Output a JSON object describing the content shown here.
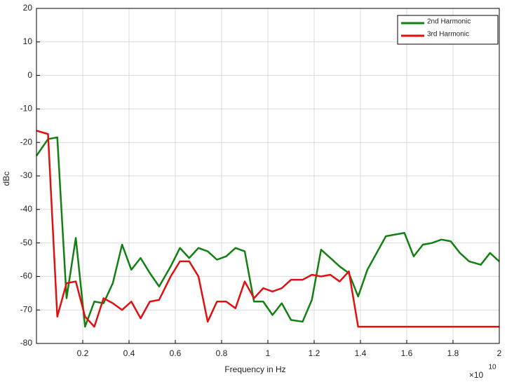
{
  "chart_data": {
    "type": "line",
    "x_label": "Frequency in Hz",
    "y_label": "dBc",
    "x_multiplier": "×10",
    "x_multiplier_exponent": "10",
    "xlim": [
      0,
      2
    ],
    "ylim": [
      -80,
      20
    ],
    "xticks": [
      0.2,
      0.4,
      0.6,
      0.8,
      1,
      1.2,
      1.4,
      1.6,
      1.8,
      2
    ],
    "yticks": [
      -80,
      -70,
      -60,
      -50,
      -40,
      -30,
      -20,
      -10,
      0,
      10,
      20
    ],
    "grid": true,
    "legend": "upper right",
    "series": [
      {
        "name": "2nd Harmonic",
        "color": "#128012",
        "x": [
          0,
          0.05,
          0.09,
          0.13,
          0.17,
          0.21,
          0.25,
          0.29,
          0.33,
          0.37,
          0.41,
          0.45,
          0.49,
          0.53,
          0.58,
          0.62,
          0.66,
          0.7,
          0.74,
          0.78,
          0.82,
          0.86,
          0.9,
          0.94,
          0.98,
          1.02,
          1.06,
          1.1,
          1.15,
          1.19,
          1.23,
          1.27,
          1.31,
          1.35,
          1.39,
          1.43,
          1.51,
          1.55,
          1.59,
          1.63,
          1.67,
          1.71,
          1.75,
          1.79,
          1.83,
          1.87,
          1.92,
          1.96,
          2
        ],
        "values": [
          -24,
          -19,
          -18.5,
          -66.5,
          -48.5,
          -75,
          -67.5,
          -68,
          -62,
          -50.5,
          -58,
          -54.5,
          -59,
          -63,
          -57,
          -51.5,
          -54.5,
          -51.5,
          -52.5,
          -55,
          -54,
          -51.5,
          -52.5,
          -67.5,
          -67.5,
          -71.5,
          -68,
          -73,
          -73.5,
          -67,
          -52,
          -54.5,
          -57,
          -59,
          -66,
          -58,
          -48,
          -47.5,
          -47,
          -54,
          -50.5,
          -50,
          -49,
          -49.5,
          -53,
          -55.5,
          -56.5,
          -53,
          -55.5
        ]
      },
      {
        "name": "3rd Harmonic",
        "color": "#e01010",
        "x": [
          0,
          0.05,
          0.09,
          0.13,
          0.17,
          0.21,
          0.25,
          0.29,
          0.33,
          0.37,
          0.41,
          0.45,
          0.49,
          0.53,
          0.58,
          0.62,
          0.66,
          0.7,
          0.74,
          0.78,
          0.82,
          0.86,
          0.9,
          0.94,
          0.98,
          1.02,
          1.06,
          1.1,
          1.15,
          1.19,
          1.23,
          1.27,
          1.31,
          1.35,
          1.39,
          2
        ],
        "values": [
          -16.5,
          -17.5,
          -72,
          -62,
          -61.5,
          -72,
          -75,
          -66.5,
          -68,
          -70,
          -67.5,
          -72.5,
          -67.5,
          -67,
          -60,
          -55.5,
          -55.5,
          -60,
          -73.5,
          -67.5,
          -67.5,
          -69.5,
          -61.5,
          -66.5,
          -63.5,
          -64.5,
          -63.5,
          -61,
          -61,
          -59.5,
          -60,
          -59.5,
          -61.5,
          -58.5,
          -75,
          -75
        ]
      }
    ]
  }
}
